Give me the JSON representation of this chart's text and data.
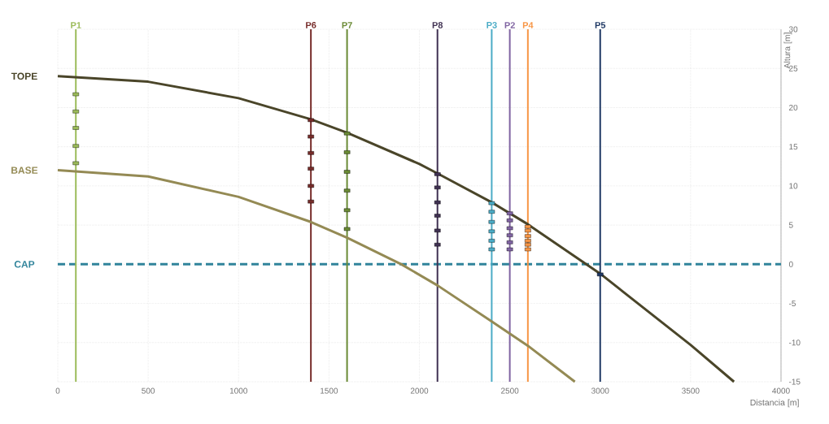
{
  "chart_data": {
    "type": "line",
    "xlabel": "Distancia [m]",
    "ylabel": "Altura [m]",
    "xlim": [
      0,
      4000
    ],
    "xticks": [
      0,
      500,
      1000,
      1500,
      2000,
      2500,
      3000,
      3500,
      4000
    ],
    "ylim": [
      -15,
      30
    ],
    "yticks": [
      -15,
      -10,
      -5,
      0,
      5,
      10,
      15,
      20,
      25,
      30
    ],
    "grid": true,
    "series": [
      {
        "name": "TOPE",
        "type": "line",
        "color": "#4a4529",
        "x": [
          0,
          500,
          1000,
          1400,
          1600,
          2000,
          2100,
          2400,
          2500,
          2600,
          3000,
          3500,
          3740
        ],
        "values": [
          24,
          23.3,
          21.2,
          18.5,
          16.8,
          12.8,
          11.6,
          7.9,
          6.5,
          5.1,
          -1.2,
          -10.3,
          -15
        ]
      },
      {
        "name": "BASE",
        "type": "line",
        "color": "#948a54",
        "x": [
          0,
          500,
          1000,
          1400,
          1600,
          1900,
          2100,
          2400,
          2600,
          2860
        ],
        "values": [
          12,
          11.2,
          8.6,
          5.4,
          3.4,
          0,
          -2.7,
          -7.3,
          -10.4,
          -15
        ]
      },
      {
        "type": "scatter",
        "marker": "square",
        "color": "#9bbb59",
        "x": [
          100,
          100,
          100,
          100,
          100
        ],
        "values": [
          21.7,
          19.5,
          17.4,
          15.1,
          12.9
        ]
      },
      {
        "type": "scatter",
        "marker": "square",
        "color": "#772c2a",
        "x": [
          1400,
          1400,
          1400,
          1400,
          1400,
          1400
        ],
        "values": [
          18.4,
          16.3,
          14.2,
          12.2,
          10.0,
          8.0
        ]
      },
      {
        "type": "scatter",
        "marker": "square",
        "color": "#6a8a35",
        "x": [
          1600,
          1600,
          1600,
          1600,
          1600,
          1600
        ],
        "values": [
          16.7,
          14.3,
          11.8,
          9.4,
          6.9,
          4.5
        ]
      },
      {
        "type": "scatter",
        "marker": "square",
        "color": "#403152",
        "x": [
          2100,
          2100,
          2100,
          2100,
          2100,
          2100
        ],
        "values": [
          11.5,
          9.8,
          7.9,
          6.2,
          4.3,
          2.5
        ]
      },
      {
        "type": "scatter",
        "marker": "square",
        "color": "#4bacc6",
        "x": [
          2400,
          2400,
          2400,
          2400,
          2400,
          2400
        ],
        "values": [
          7.8,
          6.7,
          5.4,
          4.2,
          3.0,
          1.9
        ]
      },
      {
        "type": "scatter",
        "marker": "square",
        "color": "#8064a2",
        "x": [
          2500,
          2500,
          2500,
          2500,
          2500,
          2500
        ],
        "values": [
          6.5,
          5.6,
          4.6,
          3.7,
          2.8,
          1.9
        ]
      },
      {
        "type": "scatter",
        "marker": "square",
        "color": "#f79646",
        "x": [
          2600,
          2600,
          2600,
          2600,
          2600,
          2600
        ],
        "values": [
          4.8,
          4.3,
          3.6,
          3.0,
          2.5,
          1.9
        ]
      },
      {
        "type": "scatter",
        "marker": "square",
        "color": "#1f3864",
        "x": [
          3000
        ],
        "values": [
          -1.3
        ]
      }
    ],
    "ref_lines": [
      {
        "axis": "y",
        "value": 0,
        "label": "CAP",
        "color": "#31849b",
        "line_style": "dashed"
      },
      {
        "axis": "x",
        "value": 100,
        "label": "P1",
        "color": "#9bbb59"
      },
      {
        "axis": "x",
        "value": 1400,
        "label": "P6",
        "color": "#772c2a"
      },
      {
        "axis": "x",
        "value": 1600,
        "label": "P7",
        "color": "#6a8a35"
      },
      {
        "axis": "x",
        "value": 2100,
        "label": "P8",
        "color": "#403152"
      },
      {
        "axis": "x",
        "value": 2400,
        "label": "P3",
        "color": "#4bacc6"
      },
      {
        "axis": "x",
        "value": 2500,
        "label": "P2",
        "color": "#8064a2"
      },
      {
        "axis": "x",
        "value": 2600,
        "label": "P4",
        "color": "#f79646"
      },
      {
        "axis": "x",
        "value": 3000,
        "label": "P5",
        "color": "#1f3864"
      }
    ]
  }
}
